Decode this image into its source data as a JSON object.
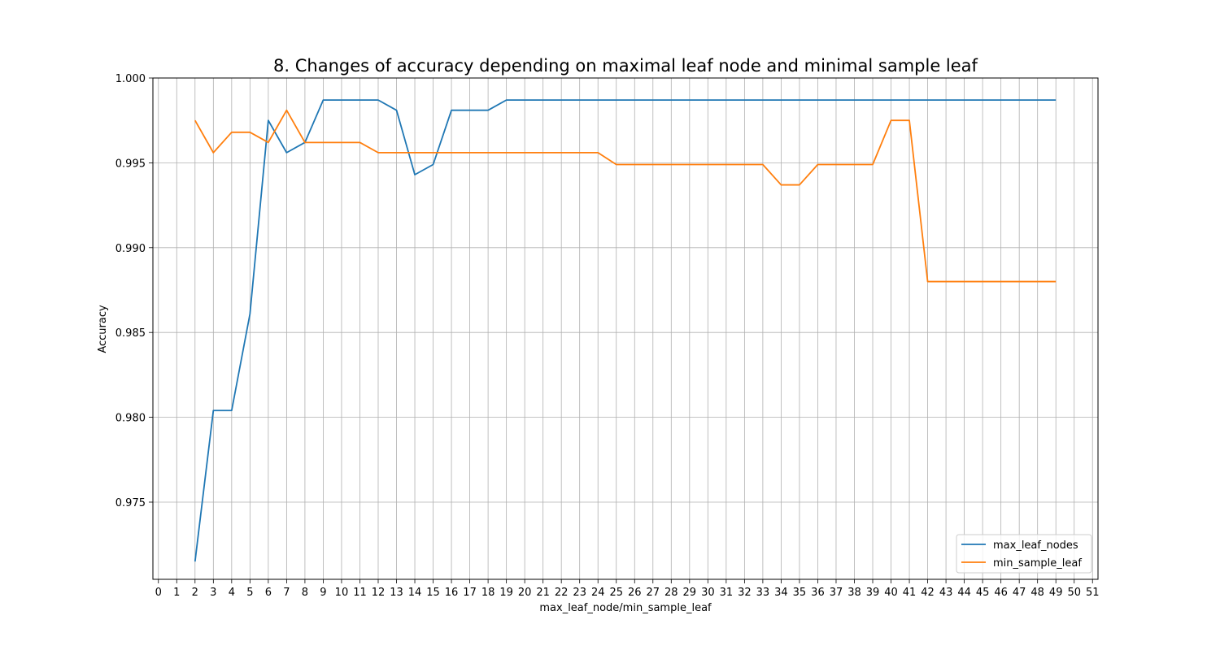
{
  "chart_data": {
    "type": "line",
    "title": "8. Changes of accuracy depending on maximal leaf node and minimal sample leaf",
    "xlabel": "max_leaf_node/min_sample_leaf",
    "ylabel": "Accuracy",
    "xlim": [
      -0.3,
      51.3
    ],
    "ylim": [
      0.97045,
      1.0
    ],
    "xticks": [
      0,
      1,
      2,
      3,
      4,
      5,
      6,
      7,
      8,
      9,
      10,
      11,
      12,
      13,
      14,
      15,
      16,
      17,
      18,
      19,
      20,
      21,
      22,
      23,
      24,
      25,
      26,
      27,
      28,
      29,
      30,
      31,
      32,
      33,
      34,
      35,
      36,
      37,
      38,
      39,
      40,
      41,
      42,
      43,
      44,
      45,
      46,
      47,
      48,
      49,
      50,
      51
    ],
    "yticks": [
      0.975,
      0.98,
      0.985,
      0.99,
      0.995,
      1.0
    ],
    "ytick_labels": [
      "0.975",
      "0.980",
      "0.985",
      "0.990",
      "0.995",
      "1.000"
    ],
    "grid": true,
    "legend_position": "lower-right",
    "x": [
      2,
      3,
      4,
      5,
      6,
      7,
      8,
      9,
      10,
      11,
      12,
      13,
      14,
      15,
      16,
      17,
      18,
      19,
      20,
      21,
      22,
      23,
      24,
      25,
      26,
      27,
      28,
      29,
      30,
      31,
      32,
      33,
      34,
      35,
      36,
      37,
      38,
      39,
      40,
      41,
      42,
      43,
      44,
      45,
      46,
      47,
      48,
      49
    ],
    "series": [
      {
        "name": "max_leaf_nodes",
        "color": "#1f77b4",
        "values": [
          0.9715,
          0.9804,
          0.9804,
          0.9861,
          0.9975,
          0.9956,
          0.9962,
          0.9987,
          0.9987,
          0.9987,
          0.9987,
          0.9981,
          0.9943,
          0.9949,
          0.9981,
          0.9981,
          0.9981,
          0.9987,
          0.9987,
          0.9987,
          0.9987,
          0.9987,
          0.9987,
          0.9987,
          0.9987,
          0.9987,
          0.9987,
          0.9987,
          0.9987,
          0.9987,
          0.9987,
          0.9987,
          0.9987,
          0.9987,
          0.9987,
          0.9987,
          0.9987,
          0.9987,
          0.9987,
          0.9987,
          0.9987,
          0.9987,
          0.9987,
          0.9987,
          0.9987,
          0.9987,
          0.9987,
          0.9987
        ]
      },
      {
        "name": "min_sample_leaf",
        "color": "#ff7f0e",
        "values": [
          0.9975,
          0.9956,
          0.9968,
          0.9968,
          0.9962,
          0.9981,
          0.9962,
          0.9962,
          0.9962,
          0.9962,
          0.9956,
          0.9956,
          0.9956,
          0.9956,
          0.9956,
          0.9956,
          0.9956,
          0.9956,
          0.9956,
          0.9956,
          0.9956,
          0.9956,
          0.9956,
          0.9949,
          0.9949,
          0.9949,
          0.9949,
          0.9949,
          0.9949,
          0.9949,
          0.9949,
          0.9949,
          0.9937,
          0.9937,
          0.9949,
          0.9949,
          0.9949,
          0.9949,
          0.9975,
          0.9975,
          0.988,
          0.988,
          0.988,
          0.988,
          0.988,
          0.988,
          0.988,
          0.988
        ]
      }
    ]
  }
}
